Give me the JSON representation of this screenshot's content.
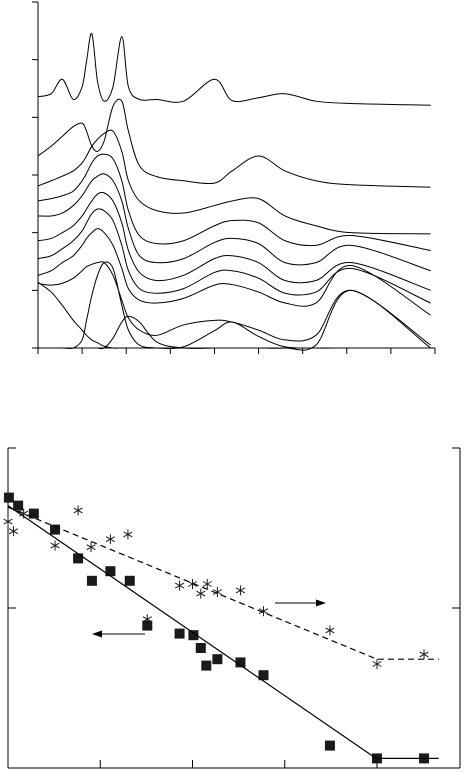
{
  "chart_data": [
    {
      "type": "line",
      "x": [
        0,
        0.3,
        0.55,
        0.8,
        1.0,
        1.1,
        1.22,
        1.35,
        1.5,
        1.7,
        1.9,
        2.05,
        2.3,
        2.7,
        3.3,
        4.0,
        4.4,
        5.0,
        5.6,
        6.3,
        7.1,
        8.9
      ],
      "xlim": [
        0,
        9
      ],
      "xticks": [
        0,
        1,
        2,
        3,
        4,
        5,
        6,
        7,
        8,
        9
      ],
      "ylim": [
        0,
        6
      ],
      "yticks": [
        0,
        1,
        2,
        3,
        4,
        5,
        6
      ],
      "series": [
        {
          "color": "#000000",
          "values": [
            4.36,
            4.41,
            4.66,
            4.31,
            4.53,
            4.97,
            5.45,
            4.62,
            4.28,
            4.53,
            5.4,
            4.53,
            4.31,
            4.31,
            4.28,
            4.66,
            4.29,
            4.34,
            4.41,
            4.28,
            4.24,
            4.21
          ]
        },
        {
          "color": "#000000",
          "values": [
            3.33,
            3.5,
            3.67,
            3.84,
            3.9,
            3.76,
            3.5,
            3.41,
            3.59,
            4.19,
            4.28,
            3.76,
            3.16,
            2.97,
            2.9,
            2.86,
            3.07,
            3.33,
            3.07,
            2.9,
            2.83,
            2.79
          ]
        },
        {
          "color": "#000000",
          "values": [
            2.81,
            2.9,
            2.98,
            3.07,
            3.21,
            3.33,
            3.5,
            3.62,
            3.72,
            3.76,
            3.41,
            2.9,
            2.55,
            2.38,
            2.34,
            2.47,
            2.55,
            2.59,
            2.29,
            2.12,
            2.0,
            1.98
          ]
        },
        {
          "color": "#000000",
          "values": [
            2.55,
            2.59,
            2.64,
            2.72,
            2.9,
            3.03,
            3.21,
            3.33,
            3.36,
            3.28,
            2.9,
            2.38,
            1.95,
            1.81,
            1.86,
            2.12,
            2.21,
            2.17,
            1.86,
            1.78,
            1.95,
            1.69
          ]
        },
        {
          "color": "#000000",
          "values": [
            2.29,
            2.29,
            2.34,
            2.47,
            2.64,
            2.76,
            2.9,
            2.98,
            3.02,
            2.9,
            2.55,
            2.07,
            1.6,
            1.48,
            1.55,
            1.83,
            1.9,
            1.81,
            1.48,
            1.48,
            1.78,
            1.34
          ]
        },
        {
          "color": "#000000",
          "values": [
            1.86,
            1.9,
            2.0,
            2.12,
            2.29,
            2.41,
            2.55,
            2.67,
            2.69,
            2.55,
            2.17,
            1.69,
            1.31,
            1.17,
            1.26,
            1.55,
            1.6,
            1.48,
            1.17,
            1.17,
            1.48,
            1.0
          ]
        },
        {
          "color": "#000000",
          "values": [
            1.55,
            1.6,
            1.72,
            1.86,
            2.03,
            2.17,
            2.33,
            2.41,
            2.38,
            2.21,
            1.78,
            1.34,
            1.03,
            0.95,
            1.03,
            1.31,
            1.34,
            1.21,
            0.95,
            0.97,
            1.38,
            0.78
          ]
        },
        {
          "color": "#000000",
          "values": [
            1.26,
            1.34,
            1.48,
            1.6,
            1.78,
            1.9,
            2.0,
            2.07,
            2.0,
            1.78,
            1.38,
            1.03,
            0.83,
            0.78,
            0.86,
            1.09,
            1.1,
            0.97,
            0.78,
            0.78,
            1.43,
            0.57
          ]
        },
        {
          "color": "#000000",
          "values": [
            1.12,
            1.09,
            1.12,
            1.21,
            1.34,
            1.41,
            1.45,
            1.48,
            1.48,
            1.26,
            0.83,
            0.52,
            0.31,
            0.22,
            0.4,
            0.48,
            0.45,
            0.31,
            0.14,
            0.22,
            1.0,
            0.05
          ]
        },
        {
          "color": "#000000",
          "values": [
            1.14,
            0.97,
            0.74,
            0.48,
            0.31,
            0.22,
            0.14,
            0.09,
            0.03,
            0,
            0,
            0,
            0,
            0,
            0,
            0,
            0,
            0,
            0,
            0,
            0,
            0
          ]
        },
        {
          "color": "#000000",
          "values": [
            0,
            0,
            0,
            0,
            0.14,
            0.48,
            0.91,
            1.26,
            1.48,
            1.38,
            0.74,
            0.31,
            0.05,
            0,
            0,
            0,
            0,
            0,
            0,
            0,
            0,
            0
          ]
        },
        {
          "color": "#000000",
          "values": [
            0,
            0,
            0,
            0,
            0,
            0,
            0,
            0,
            0,
            0.17,
            0.45,
            0.55,
            0.45,
            0.1,
            0,
            0,
            0,
            0,
            0,
            0,
            0,
            0
          ]
        },
        {
          "color": "#000000",
          "values": [
            0,
            0,
            0,
            0,
            0,
            0,
            0,
            0,
            0,
            0,
            0,
            0,
            0,
            0,
            0.02,
            0.3,
            0.45,
            0.2,
            0.02,
            0,
            0,
            0
          ]
        },
        {
          "color": "#000000",
          "values": [
            0,
            0,
            0,
            0,
            0,
            0,
            0,
            0,
            0,
            0,
            0,
            0,
            0,
            0,
            0,
            0,
            0,
            0,
            0,
            0.05,
            1.0,
            0
          ]
        }
      ]
    },
    {
      "type": "scatter",
      "xlim": [
        0,
        4.9
      ],
      "xticks": [
        0,
        1,
        2,
        3,
        4
      ],
      "ylim": [
        0,
        2
      ],
      "yticks": [
        0,
        1,
        2
      ],
      "y2lim": [
        0,
        2
      ],
      "y2ticks": [
        0,
        1,
        2
      ],
      "series": [
        {
          "marker": "square",
          "color": "#1a1a1a",
          "x": [
            0.01,
            0.11,
            0.28,
            0.51,
            0.76,
            0.91,
            1.11,
            1.32,
            1.51,
            1.86,
            2.01,
            2.09,
            2.15,
            2.27,
            2.52,
            2.77,
            3.49,
            4.0,
            4.51
          ],
          "values": [
            1.69,
            1.64,
            1.59,
            1.49,
            1.31,
            1.17,
            1.23,
            1.17,
            0.89,
            0.84,
            0.83,
            0.75,
            0.64,
            0.68,
            0.66,
            0.58,
            0.14,
            0.06,
            0.06
          ]
        },
        {
          "marker": "star",
          "color": "#1a1a1a",
          "axis": "y2",
          "x": [
            0,
            0.06,
            0.17,
            0.51,
            0.76,
            0.9,
            1.11,
            1.3,
            1.51,
            1.86,
            2.0,
            2.09,
            2.16,
            2.27,
            2.52,
            2.77,
            3.49,
            4.0,
            4.51
          ],
          "values": [
            1.54,
            1.48,
            1.59,
            1.39,
            1.61,
            1.38,
            1.43,
            1.46,
            0.93,
            1.14,
            1.15,
            1.09,
            1.15,
            1.1,
            1.11,
            0.98,
            0.86,
            0.65,
            0.71
          ]
        },
        {
          "line": "solid",
          "color": "#000000",
          "x": [
            0,
            3.99,
            4.67
          ],
          "values": [
            1.64,
            0.06,
            0.06
          ]
        },
        {
          "line": "dashed",
          "color": "#000000",
          "axis": "y2",
          "x": [
            0,
            4.0,
            4.67
          ],
          "values": [
            1.63,
            0.68,
            0.68
          ]
        }
      ]
    }
  ]
}
